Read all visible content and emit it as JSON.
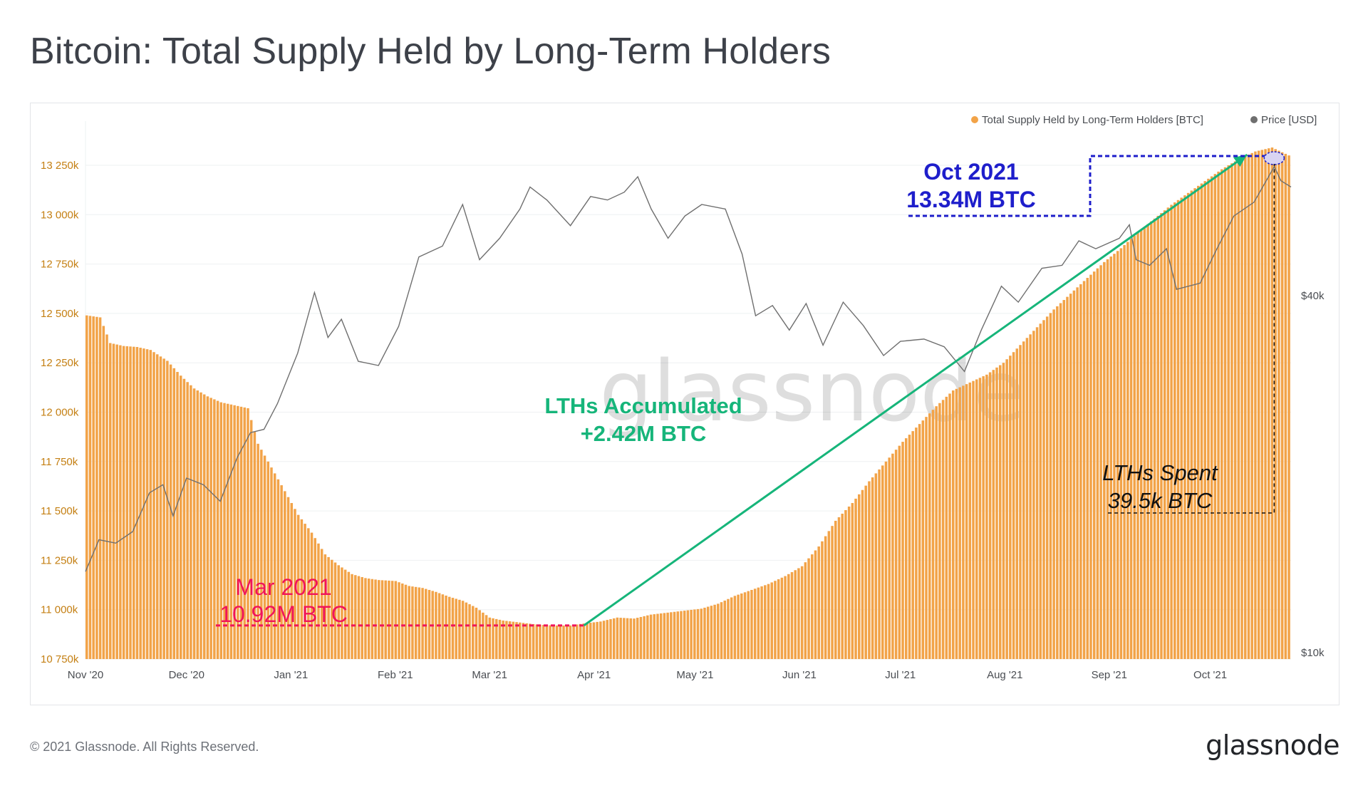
{
  "title": "Bitcoin: Total Supply Held by Long-Term Holders",
  "footer": {
    "copyright": "© 2021 Glassnode. All Rights Reserved.",
    "logo": "glassnode"
  },
  "watermark": "glassnode",
  "colors": {
    "supply": "#f2a348",
    "price": "#6f6f6f",
    "accumulated": "#16b57a",
    "mar": "#f0145a",
    "oct": "#1e1ecb",
    "spent": "#111111"
  },
  "chart_data": {
    "type": "bar",
    "x_range": [
      "2020-11-01",
      "2021-10-25"
    ],
    "y_left": {
      "ylim": [
        10750,
        13280
      ],
      "unit": "k BTC",
      "ticks": [
        10750,
        11000,
        11250,
        11500,
        11750,
        12000,
        12250,
        12500,
        12750,
        13000,
        13250
      ],
      "tick_labels": [
        "10 750k",
        "11 000k",
        "11 250k",
        "11 500k",
        "11 750k",
        "12 000k",
        "12 250k",
        "12 500k",
        "12 750k",
        "13 000k",
        "13 250k"
      ]
    },
    "y_right": {
      "scale": "log",
      "ticks": [
        10000,
        40000
      ],
      "tick_labels": [
        "$10k",
        "$40k"
      ]
    },
    "x_ticks": [
      {
        "date": "2020-11-01",
        "label": "Nov '20"
      },
      {
        "date": "2020-12-01",
        "label": "Dec '20"
      },
      {
        "date": "2021-01-01",
        "label": "Jan '21"
      },
      {
        "date": "2021-02-01",
        "label": "Feb '21"
      },
      {
        "date": "2021-03-01",
        "label": "Mar '21"
      },
      {
        "date": "2021-04-01",
        "label": "Apr '21"
      },
      {
        "date": "2021-05-01",
        "label": "May '21"
      },
      {
        "date": "2021-06-01",
        "label": "Jun '21"
      },
      {
        "date": "2021-07-01",
        "label": "Jul '21"
      },
      {
        "date": "2021-08-01",
        "label": "Aug '21"
      },
      {
        "date": "2021-09-01",
        "label": "Sep '21"
      },
      {
        "date": "2021-10-01",
        "label": "Oct '21"
      }
    ],
    "legend": [
      {
        "name": "Total Supply Held by Long-Term Holders [BTC]",
        "color": "#f2a348"
      },
      {
        "name": "Price [USD]",
        "color": "#6f6f6f"
      }
    ],
    "legend_position": "top-right",
    "series": [
      {
        "name": "Total Supply Held by Long-Term Holders [BTC]",
        "kind": "bar",
        "points": [
          [
            "2020-11-01",
            12490
          ],
          [
            "2020-11-05",
            12480
          ],
          [
            "2020-11-08",
            12350
          ],
          [
            "2020-11-12",
            12335
          ],
          [
            "2020-11-16",
            12330
          ],
          [
            "2020-11-20",
            12315
          ],
          [
            "2020-11-25",
            12260
          ],
          [
            "2020-11-29",
            12185
          ],
          [
            "2020-12-03",
            12120
          ],
          [
            "2020-12-07",
            12080
          ],
          [
            "2020-12-11",
            12050
          ],
          [
            "2020-12-15",
            12035
          ],
          [
            "2020-12-19",
            12020
          ],
          [
            "2020-12-22",
            11840
          ],
          [
            "2020-12-26",
            11720
          ],
          [
            "2020-12-30",
            11600
          ],
          [
            "2021-01-03",
            11480
          ],
          [
            "2021-01-07",
            11390
          ],
          [
            "2021-01-11",
            11280
          ],
          [
            "2021-01-15",
            11225
          ],
          [
            "2021-01-19",
            11180
          ],
          [
            "2021-01-23",
            11160
          ],
          [
            "2021-01-27",
            11150
          ],
          [
            "2021-02-01",
            11145
          ],
          [
            "2021-02-05",
            11120
          ],
          [
            "2021-02-09",
            11110
          ],
          [
            "2021-02-13",
            11090
          ],
          [
            "2021-02-17",
            11065
          ],
          [
            "2021-02-21",
            11045
          ],
          [
            "2021-02-25",
            11010
          ],
          [
            "2021-03-01",
            10960
          ],
          [
            "2021-03-05",
            10945
          ],
          [
            "2021-03-10",
            10935
          ],
          [
            "2021-03-15",
            10925
          ],
          [
            "2021-03-20",
            10920
          ],
          [
            "2021-03-25",
            10920
          ],
          [
            "2021-03-29",
            10930
          ],
          [
            "2021-04-03",
            10940
          ],
          [
            "2021-04-08",
            10960
          ],
          [
            "2021-04-13",
            10955
          ],
          [
            "2021-04-18",
            10975
          ],
          [
            "2021-04-23",
            10985
          ],
          [
            "2021-04-28",
            10995
          ],
          [
            "2021-05-03",
            11005
          ],
          [
            "2021-05-08",
            11030
          ],
          [
            "2021-05-13",
            11070
          ],
          [
            "2021-05-18",
            11100
          ],
          [
            "2021-05-23",
            11130
          ],
          [
            "2021-05-28",
            11170
          ],
          [
            "2021-06-02",
            11220
          ],
          [
            "2021-06-07",
            11320
          ],
          [
            "2021-06-12",
            11450
          ],
          [
            "2021-06-17",
            11540
          ],
          [
            "2021-06-22",
            11650
          ],
          [
            "2021-06-27",
            11750
          ],
          [
            "2021-07-02",
            11850
          ],
          [
            "2021-07-07",
            11940
          ],
          [
            "2021-07-12",
            12030
          ],
          [
            "2021-07-17",
            12110
          ],
          [
            "2021-07-22",
            12150
          ],
          [
            "2021-07-27",
            12190
          ],
          [
            "2021-08-01",
            12250
          ],
          [
            "2021-08-06",
            12340
          ],
          [
            "2021-08-11",
            12430
          ],
          [
            "2021-08-16",
            12520
          ],
          [
            "2021-08-21",
            12600
          ],
          [
            "2021-08-26",
            12680
          ],
          [
            "2021-08-31",
            12760
          ],
          [
            "2021-09-05",
            12830
          ],
          [
            "2021-09-10",
            12910
          ],
          [
            "2021-09-15",
            12980
          ],
          [
            "2021-09-20",
            13050
          ],
          [
            "2021-09-25",
            13110
          ],
          [
            "2021-09-30",
            13170
          ],
          [
            "2021-10-05",
            13230
          ],
          [
            "2021-10-10",
            13280
          ],
          [
            "2021-10-15",
            13320
          ],
          [
            "2021-10-20",
            13340
          ],
          [
            "2021-10-25",
            13300
          ]
        ]
      },
      {
        "name": "Price [USD]",
        "kind": "line",
        "points": [
          [
            "2020-11-01",
            13700
          ],
          [
            "2020-11-05",
            15500
          ],
          [
            "2020-11-10",
            15300
          ],
          [
            "2020-11-15",
            16000
          ],
          [
            "2020-11-20",
            18600
          ],
          [
            "2020-11-24",
            19200
          ],
          [
            "2020-11-27",
            17000
          ],
          [
            "2020-12-01",
            19700
          ],
          [
            "2020-12-06",
            19200
          ],
          [
            "2020-12-11",
            18000
          ],
          [
            "2020-12-16",
            21300
          ],
          [
            "2020-12-20",
            23500
          ],
          [
            "2020-12-24",
            23800
          ],
          [
            "2020-12-28",
            26300
          ],
          [
            "2021-01-03",
            32000
          ],
          [
            "2021-01-08",
            40500
          ],
          [
            "2021-01-12",
            34000
          ],
          [
            "2021-01-16",
            36500
          ],
          [
            "2021-01-21",
            31000
          ],
          [
            "2021-01-27",
            30500
          ],
          [
            "2021-02-02",
            35500
          ],
          [
            "2021-02-08",
            46500
          ],
          [
            "2021-02-15",
            48500
          ],
          [
            "2021-02-21",
            57000
          ],
          [
            "2021-02-26",
            46000
          ],
          [
            "2021-03-04",
            50000
          ],
          [
            "2021-03-10",
            56000
          ],
          [
            "2021-03-13",
            61000
          ],
          [
            "2021-03-18",
            58000
          ],
          [
            "2021-03-25",
            52500
          ],
          [
            "2021-03-31",
            58800
          ],
          [
            "2021-04-05",
            58000
          ],
          [
            "2021-04-10",
            59800
          ],
          [
            "2021-04-14",
            63500
          ],
          [
            "2021-04-18",
            56000
          ],
          [
            "2021-04-23",
            50000
          ],
          [
            "2021-04-28",
            54500
          ],
          [
            "2021-05-03",
            57000
          ],
          [
            "2021-05-10",
            56000
          ],
          [
            "2021-05-15",
            47000
          ],
          [
            "2021-05-19",
            37000
          ],
          [
            "2021-05-24",
            38500
          ],
          [
            "2021-05-29",
            35000
          ],
          [
            "2021-06-03",
            38800
          ],
          [
            "2021-06-08",
            33000
          ],
          [
            "2021-06-14",
            39000
          ],
          [
            "2021-06-20",
            35600
          ],
          [
            "2021-06-26",
            31700
          ],
          [
            "2021-07-01",
            33500
          ],
          [
            "2021-07-08",
            33800
          ],
          [
            "2021-07-14",
            32800
          ],
          [
            "2021-07-20",
            29800
          ],
          [
            "2021-07-25",
            35000
          ],
          [
            "2021-07-31",
            41500
          ],
          [
            "2021-08-05",
            39000
          ],
          [
            "2021-08-12",
            44500
          ],
          [
            "2021-08-18",
            45000
          ],
          [
            "2021-08-23",
            49500
          ],
          [
            "2021-08-28",
            48000
          ],
          [
            "2021-09-04",
            50000
          ],
          [
            "2021-09-07",
            52700
          ],
          [
            "2021-09-09",
            46000
          ],
          [
            "2021-09-13",
            45000
          ],
          [
            "2021-09-18",
            48000
          ],
          [
            "2021-09-21",
            41000
          ],
          [
            "2021-09-28",
            42000
          ],
          [
            "2021-10-03",
            48000
          ],
          [
            "2021-10-08",
            54500
          ],
          [
            "2021-10-14",
            57500
          ],
          [
            "2021-10-20",
            66000
          ],
          [
            "2021-10-22",
            62500
          ],
          [
            "2021-10-25",
            61000
          ]
        ]
      }
    ],
    "annotations": {
      "mar": {
        "line1": "Mar 2021",
        "line2": "10.92M BTC",
        "date": "2021-03-29",
        "value": 10920
      },
      "oct": {
        "line1": "Oct 2021",
        "line2": "13.34M BTC",
        "date": "2021-10-20",
        "value": 13340
      },
      "accumulated": {
        "line1": "LTHs Accumulated",
        "line2": "+2.42M BTC"
      },
      "spent": {
        "line1": "LTHs Spent",
        "line2": "39.5k BTC"
      }
    }
  }
}
